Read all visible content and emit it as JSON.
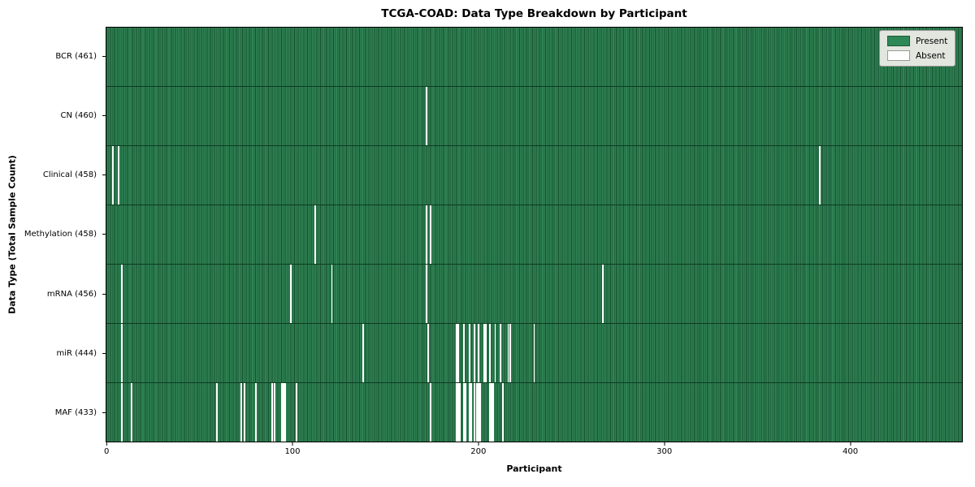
{
  "chart_data": {
    "type": "heatmap",
    "title": "TCGA-COAD: Data Type Breakdown by Participant",
    "xlabel": "Participant",
    "ylabel": "Data Type (Total Sample Count)",
    "n_participants": 461,
    "x_ticks": [
      0,
      100,
      200,
      300,
      400
    ],
    "grid": false,
    "legend_position": "upper right",
    "colors": {
      "present": "#2e8757",
      "present_edge": "#174f2e",
      "absent": "#ffffff",
      "legend_bg": "#e1e6de"
    },
    "legend": [
      {
        "label": "Present",
        "color": "#2e8757"
      },
      {
        "label": "Absent",
        "color": "#ffffff"
      }
    ],
    "rows": [
      {
        "label": "BCR (461)",
        "total": 461,
        "absent": []
      },
      {
        "label": "CN (460)",
        "total": 460,
        "absent": [
          172
        ]
      },
      {
        "label": "Clinical (458)",
        "total": 458,
        "absent": [
          3,
          6,
          384
        ]
      },
      {
        "label": "Methylation (458)",
        "total": 458,
        "absent": [
          112,
          172,
          174
        ]
      },
      {
        "label": "mRNA (456)",
        "total": 456,
        "absent": [
          8,
          99,
          121,
          172,
          267
        ]
      },
      {
        "label": "miR (444)",
        "total": 444,
        "absent": [
          8,
          138,
          173,
          188,
          189,
          192,
          195,
          198,
          200,
          203,
          204,
          206,
          209,
          212,
          216,
          217,
          230
        ]
      },
      {
        "label": "MAF (433)",
        "total": 433,
        "absent": [
          8,
          13,
          59,
          72,
          74,
          80,
          89,
          90,
          94,
          95,
          96,
          102,
          174,
          188,
          189,
          190,
          192,
          193,
          195,
          196,
          198,
          199,
          200,
          201,
          206,
          207,
          208,
          213
        ]
      }
    ]
  }
}
